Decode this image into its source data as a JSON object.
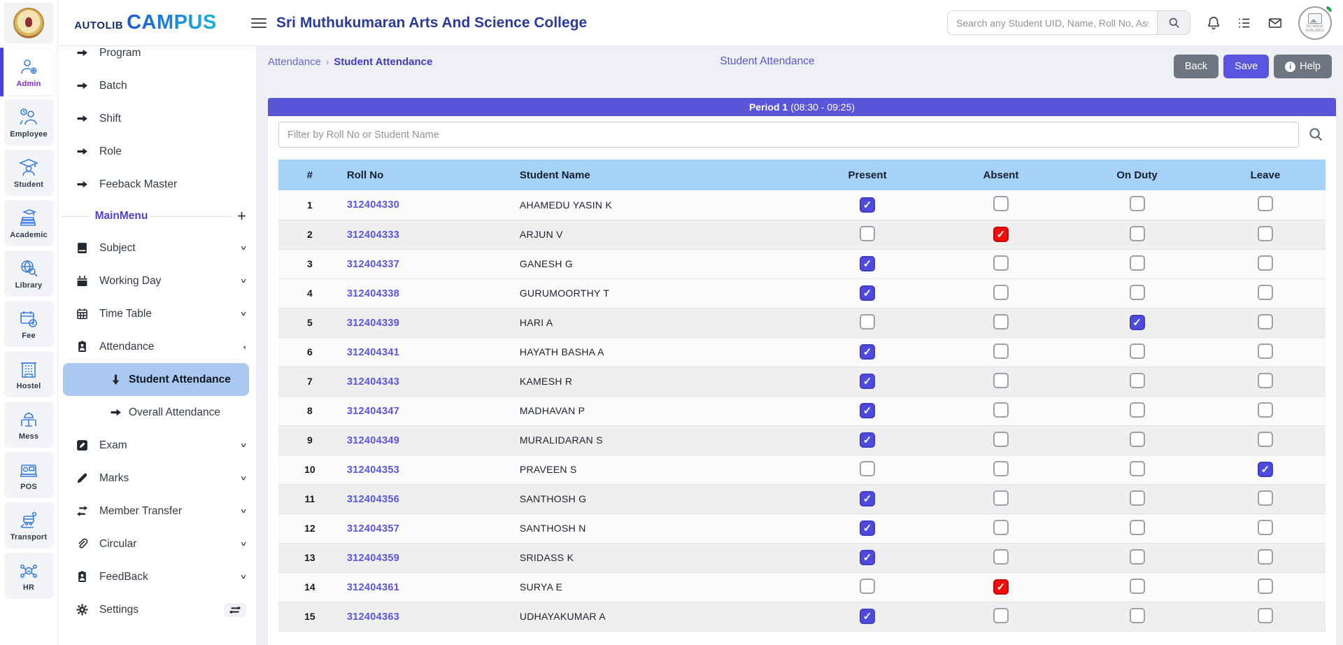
{
  "brand": {
    "primary": "AUTOLIB",
    "secondary": "CAMPUS"
  },
  "header": {
    "college_title": "Sri Muthukumaran Arts And Science College",
    "search_placeholder": "Search any Student UID, Name, Roll No, Ass",
    "avatar_text": "NO IMAGE AVAILABLE"
  },
  "rail": {
    "items": [
      {
        "label": "Admin",
        "icon": "admin-icon",
        "active": true
      },
      {
        "label": "Employee",
        "icon": "employee-icon",
        "active": false
      },
      {
        "label": "Student",
        "icon": "student-icon",
        "active": false
      },
      {
        "label": "Academic",
        "icon": "academic-icon",
        "active": false
      },
      {
        "label": "Library",
        "icon": "library-icon",
        "active": false
      },
      {
        "label": "Fee",
        "icon": "fee-icon",
        "active": false
      },
      {
        "label": "Hostel",
        "icon": "hostel-icon",
        "active": false
      },
      {
        "label": "Mess",
        "icon": "mess-icon",
        "active": false
      },
      {
        "label": "POS",
        "icon": "pos-icon",
        "active": false
      },
      {
        "label": "Transport",
        "icon": "transport-icon",
        "active": false
      },
      {
        "label": "HR",
        "icon": "hr-icon",
        "active": false
      }
    ]
  },
  "sidebar": {
    "top_items": [
      {
        "label": "Program",
        "icon": "arrow-right"
      },
      {
        "label": "Batch",
        "icon": "arrow-right"
      },
      {
        "label": "Shift",
        "icon": "arrow-right"
      },
      {
        "label": "Role",
        "icon": "arrow-right"
      },
      {
        "label": "Feeback Master",
        "icon": "arrow-right"
      }
    ],
    "section_label": "MainMenu",
    "section_action": "+",
    "menu": [
      {
        "label": "Subject",
        "icon": "book",
        "chevron": "down"
      },
      {
        "label": "Working Day",
        "icon": "calendar",
        "chevron": "down"
      },
      {
        "label": "Time Table",
        "icon": "calendar-grid",
        "chevron": "down"
      },
      {
        "label": "Attendance",
        "icon": "badge",
        "chevron": "left"
      },
      {
        "label": "Student Attendance",
        "icon": "arrow-down",
        "sub": true,
        "active": true
      },
      {
        "label": "Overall Attendance",
        "icon": "arrow-right",
        "sub": true
      },
      {
        "label": "Exam",
        "icon": "pencil-square",
        "chevron": "down"
      },
      {
        "label": "Marks",
        "icon": "pen",
        "chevron": "down"
      },
      {
        "label": "Member Transfer",
        "icon": "transfer",
        "chevron": "down"
      },
      {
        "label": "Circular",
        "icon": "paperclip",
        "chevron": "down"
      },
      {
        "label": "FeedBack",
        "icon": "badge",
        "chevron": "down"
      },
      {
        "label": "Settings",
        "icon": "gear",
        "trailing": "swap"
      }
    ]
  },
  "breadcrumb": {
    "parent": "Attendance",
    "separator": "›",
    "current": "Student Attendance"
  },
  "page": {
    "center_title": "Student Attendance",
    "back_label": "Back",
    "save_label": "Save",
    "help_label": "Help"
  },
  "period": {
    "name": "Period 1",
    "time": "(08:30 - 09:25)"
  },
  "filter": {
    "placeholder": "Filter by Roll No or Student Name"
  },
  "table": {
    "columns": [
      "#",
      "Roll No",
      "Student Name",
      "Present",
      "Absent",
      "On Duty",
      "Leave"
    ],
    "rows": [
      {
        "sno": 1,
        "roll": "312404330",
        "name": "AHAMEDU YASIN K",
        "status": "present"
      },
      {
        "sno": 2,
        "roll": "312404333",
        "name": "ARJUN V",
        "status": "absent"
      },
      {
        "sno": 3,
        "roll": "312404337",
        "name": "GANESH G",
        "status": "present"
      },
      {
        "sno": 4,
        "roll": "312404338",
        "name": "GURUMOORTHY T",
        "status": "present"
      },
      {
        "sno": 5,
        "roll": "312404339",
        "name": "HARI A",
        "status": "onduty"
      },
      {
        "sno": 6,
        "roll": "312404341",
        "name": "HAYATH BASHA A",
        "status": "present"
      },
      {
        "sno": 7,
        "roll": "312404343",
        "name": "KAMESH R",
        "status": "present"
      },
      {
        "sno": 8,
        "roll": "312404347",
        "name": "MADHAVAN P",
        "status": "present"
      },
      {
        "sno": 9,
        "roll": "312404349",
        "name": "MURALIDARAN S",
        "status": "present"
      },
      {
        "sno": 10,
        "roll": "312404353",
        "name": "PRAVEEN S",
        "status": "leave"
      },
      {
        "sno": 11,
        "roll": "312404356",
        "name": "SANTHOSH G",
        "status": "present"
      },
      {
        "sno": 12,
        "roll": "312404357",
        "name": "SANTHOSH N",
        "status": "present"
      },
      {
        "sno": 13,
        "roll": "312404359",
        "name": "SRIDASS K",
        "status": "present"
      },
      {
        "sno": 14,
        "roll": "312404361",
        "name": "SURYA E",
        "status": "absent"
      },
      {
        "sno": 15,
        "roll": "312404363",
        "name": "UDHAYAKUMAR A",
        "status": "present"
      }
    ]
  },
  "colors": {
    "primary_indigo": "#5a55e0",
    "period_bar": "#5a55d8",
    "table_header_blue": "#a5d2f6",
    "absent_red": "#f20d0d",
    "active_item_blue": "#a9c9f1",
    "title_blue": "#2b3a9e"
  }
}
